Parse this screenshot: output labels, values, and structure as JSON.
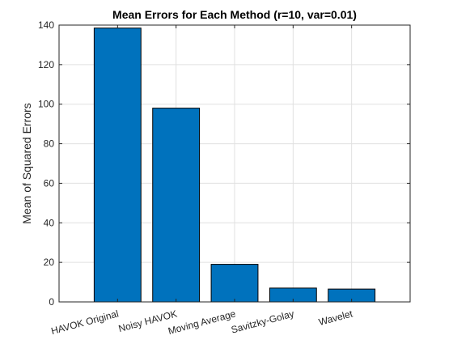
{
  "chart_data": {
    "type": "bar",
    "title": "Mean Errors for Each Method (r=10, var=0.01)",
    "xlabel": "",
    "ylabel": "Mean of Squared Errors",
    "categories": [
      "HAVOK Original",
      "Noisy HAVOK",
      "Moving Average",
      "Savitzky-Golay",
      "Wavelet"
    ],
    "values": [
      138.5,
      98,
      19,
      7,
      6.5
    ],
    "ylim": [
      0,
      140
    ],
    "yticks": [
      "0",
      "20",
      "40",
      "60",
      "80",
      "100",
      "120",
      "140"
    ],
    "grid": true,
    "bar_color": "#0072BD",
    "edge_color": "#000000",
    "grid_color": "#e0e0e0",
    "axis_color": "#262626"
  }
}
